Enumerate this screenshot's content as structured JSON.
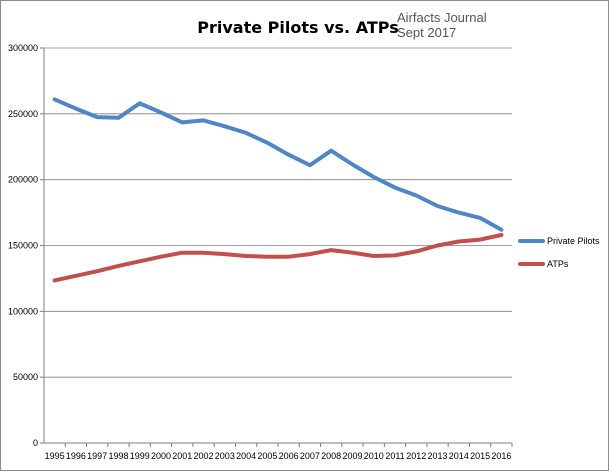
{
  "chart_data": {
    "type": "line",
    "title": "Private Pilots vs. ATPs",
    "annotations": [
      "Airfacts Journal",
      "Sept 2017"
    ],
    "xlabel": "",
    "ylabel": "",
    "categories": [
      "1995",
      "1996",
      "1997",
      "1998",
      "1999",
      "2000",
      "2001",
      "2002",
      "2003",
      "2004",
      "2005",
      "2006",
      "2007",
      "2008",
      "2009",
      "2010",
      "2011",
      "2012",
      "2013",
      "2014",
      "2015",
      "2016"
    ],
    "ylim": [
      0,
      300000
    ],
    "yticks": [
      "0",
      "50000",
      "100000",
      "150000",
      "200000",
      "250000",
      "300000"
    ],
    "grid": true,
    "legend_position": "right",
    "series": [
      {
        "name": "Private Pilots",
        "color": "#4f86c6",
        "values": [
          261000,
          254000,
          247500,
          247000,
          258000,
          251000,
          243500,
          245000,
          240500,
          235500,
          228000,
          219000,
          211000,
          222000,
          211500,
          202000,
          194000,
          188000,
          180000,
          175000,
          171000,
          162000
        ]
      },
      {
        "name": "ATPs",
        "color": "#c0504d",
        "values": [
          123500,
          127000,
          130500,
          134500,
          138000,
          141500,
          144500,
          144500,
          143500,
          142000,
          141500,
          141500,
          143500,
          146500,
          144500,
          142000,
          142500,
          145500,
          150000,
          153000,
          154500,
          158000
        ]
      }
    ]
  }
}
